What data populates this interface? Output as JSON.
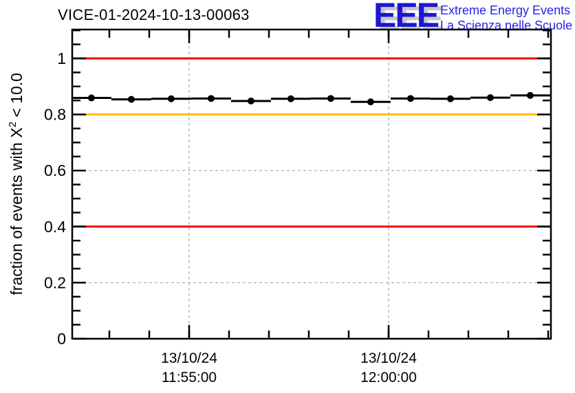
{
  "logo": {
    "acronym": "EEE",
    "tagline_1": "Extreme Energy Events",
    "tagline_2": "La Scienza nelle Scuole",
    "acronym_color": "#1c17d6",
    "tagline_color": "#2522e8",
    "shadow_color": "#c8c8c8"
  },
  "chart_data": {
    "type": "line",
    "title": "VICE-01-2024-10-13-00063",
    "ylabel": {
      "prefix": "fraction of events with X",
      "sup": "2",
      "suffix": " < 10.0"
    },
    "ylim": [
      0,
      1.103
    ],
    "xlim_minutes_from_1155": [
      -2.93,
      9.07
    ],
    "grid": {
      "on": true,
      "color": "#999999",
      "style": "dashed"
    },
    "frame_color": "#000000",
    "yticks": {
      "values": [
        0,
        0.2,
        0.4,
        0.6,
        0.8,
        1
      ],
      "labels": [
        "0",
        "0.2",
        "0.4",
        "0.6",
        "0.8",
        "1"
      ],
      "minor_step": 0.05
    },
    "xticks": [
      {
        "minutes_from_1155": 0,
        "date": "13/10/24",
        "time": "11:55:00"
      },
      {
        "minutes_from_1155": 5,
        "date": "13/10/24",
        "time": "12:00:00"
      }
    ],
    "x_minor_ticks_minutes_from_1155": [
      -2,
      -1,
      0,
      1,
      2,
      3,
      4,
      5,
      6,
      7,
      8,
      9
    ],
    "reference_lines": [
      {
        "y": 1.0,
        "color": "#ff0000",
        "name": "upper-limit"
      },
      {
        "y": 0.8,
        "color": "#ffbf00",
        "name": "warning-level"
      },
      {
        "y": 0.4,
        "color": "#ff0000",
        "name": "lower-limit"
      }
    ],
    "series": [
      {
        "name": "fraction of events with chi2 < 10 per 1-minute bin",
        "marker": "filled-circle",
        "color": "#000000",
        "xerr_minutes": 0.5,
        "x_minutes_from_1155": [
          -2.45,
          -1.45,
          -0.45,
          0.55,
          1.55,
          2.55,
          3.55,
          4.55,
          5.55,
          6.55,
          7.55,
          8.55
        ],
        "y_values": [
          0.859,
          0.854,
          0.856,
          0.857,
          0.848,
          0.856,
          0.857,
          0.845,
          0.857,
          0.856,
          0.86,
          0.868
        ]
      }
    ]
  }
}
